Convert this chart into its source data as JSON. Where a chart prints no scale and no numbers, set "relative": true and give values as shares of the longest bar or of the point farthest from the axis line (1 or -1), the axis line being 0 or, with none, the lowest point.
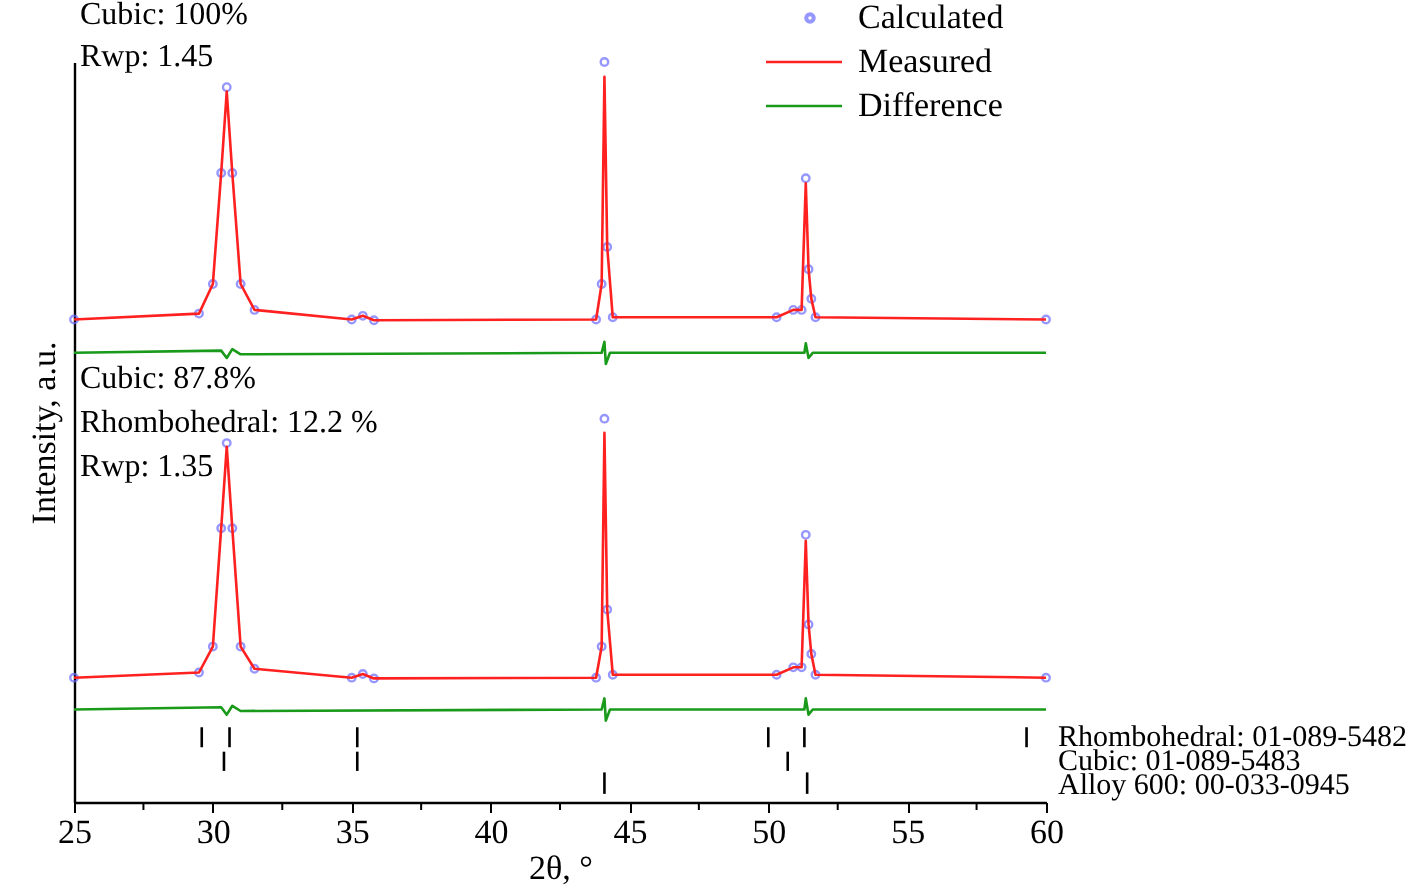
{
  "chart_data": {
    "type": "line",
    "relative": true,
    "xlabel": "2θ, °",
    "ylabel": "Intensity, a.u.",
    "xlim": [
      25,
      60
    ],
    "xticks": [
      25,
      {
        "value": 27.5,
        "label": null
      },
      30,
      {
        "value": 32.5,
        "label": null
      },
      35,
      {
        "value": 37.5,
        "label": null
      },
      40,
      {
        "value": 42.5,
        "label": null
      },
      45,
      {
        "value": 47.5,
        "label": null
      },
      50,
      {
        "value": 52.5,
        "label": null
      },
      55,
      {
        "value": 57.5,
        "label": null
      },
      60
    ],
    "tick_labels": "x",
    "grid": false,
    "legend": "top right",
    "marker": "none",
    "line_style": "solid",
    "annotations": [
      "Cubic: 100%",
      "Rwp: 1.45",
      "Cubic: 87.8%",
      "Rhombohedral: 12.2 %",
      "Rwp: 1.35",
      "Rhombohedral: 01-089-5482",
      "Cubic: 01-089-5483",
      "Alloy 600: 00-033-0945"
    ],
    "x": [
      25,
      29.5,
      30.0,
      30.3,
      30.5,
      30.7,
      31.0,
      31.5,
      35.0,
      35.4,
      35.8,
      43.8,
      44.0,
      44.1,
      44.2,
      44.4,
      50.3,
      50.9,
      51.2,
      51.35,
      51.45,
      51.55,
      51.7,
      60
    ],
    "series": [
      {
        "name": "Calculated",
        "type": "scatter",
        "marker": "circle",
        "color": "#6a6aff",
        "values": [
          0.652,
          0.66,
          0.7,
          0.85,
          0.966,
          0.85,
          0.7,
          0.665,
          0.652,
          0.657,
          0.651,
          0.652,
          0.7,
          1.0,
          0.75,
          0.655,
          0.655,
          0.665,
          0.665,
          0.843,
          0.72,
          0.68,
          0.655,
          0.652
        ]
      },
      {
        "name": "Measured",
        "color": "#ff2020",
        "values": [
          0.652,
          0.66,
          0.7,
          0.85,
          0.96,
          0.85,
          0.7,
          0.665,
          0.652,
          0.657,
          0.651,
          0.652,
          0.7,
          0.98,
          0.75,
          0.655,
          0.655,
          0.665,
          0.665,
          0.836,
          0.72,
          0.68,
          0.655,
          0.652
        ]
      },
      {
        "name": "Difference",
        "color": "#1a9a1a",
        "x": [
          25,
          30.3,
          30.5,
          30.7,
          31.0,
          44.0,
          44.1,
          44.15,
          44.3,
          51.3,
          51.35,
          51.45,
          51.6,
          60
        ],
        "values": [
          0.607,
          0.61,
          0.6,
          0.612,
          0.605,
          0.607,
          0.622,
          0.592,
          0.607,
          0.607,
          0.62,
          0.6,
          0.607,
          0.607
        ]
      },
      {
        "type": "scatter",
        "marker": "circle",
        "color": "#6a6aff",
        "values": [
          0.168,
          0.175,
          0.21,
          0.37,
          0.485,
          0.37,
          0.21,
          0.18,
          0.168,
          0.173,
          0.167,
          0.168,
          0.21,
          0.518,
          0.26,
          0.172,
          0.172,
          0.182,
          0.182,
          0.361,
          0.24,
          0.2,
          0.172,
          0.168
        ]
      },
      {
        "color": "#ff2020",
        "values": [
          0.168,
          0.175,
          0.21,
          0.37,
          0.48,
          0.37,
          0.21,
          0.18,
          0.168,
          0.173,
          0.167,
          0.168,
          0.21,
          0.499,
          0.26,
          0.172,
          0.172,
          0.182,
          0.182,
          0.353,
          0.24,
          0.2,
          0.172,
          0.168
        ]
      },
      {
        "color": "#1a9a1a",
        "x": [
          25,
          30.3,
          30.5,
          30.7,
          31.0,
          44.0,
          44.1,
          44.15,
          44.3,
          51.3,
          51.35,
          51.45,
          51.6,
          60
        ],
        "values": [
          0.125,
          0.128,
          0.118,
          0.13,
          0.123,
          0.125,
          0.14,
          0.11,
          0.125,
          0.125,
          0.14,
          0.118,
          0.125,
          0.125
        ]
      },
      {
        "color": "#000000",
        "x": [
          29.6,
          29.6
        ],
        "values": [
          0.074,
          0.101
        ]
      },
      {
        "color": "#000000",
        "x": [
          30.6,
          30.6
        ],
        "values": [
          0.074,
          0.101
        ]
      },
      {
        "color": "#000000",
        "x": [
          35.2,
          35.2
        ],
        "values": [
          0.074,
          0.101
        ]
      },
      {
        "color": "#000000",
        "x": [
          50.0,
          50.0
        ],
        "values": [
          0.074,
          0.101
        ]
      },
      {
        "color": "#000000",
        "x": [
          51.3,
          51.3
        ],
        "values": [
          0.074,
          0.101
        ]
      },
      {
        "color": "#000000",
        "x": [
          59.3,
          59.3
        ],
        "values": [
          0.074,
          0.101
        ]
      },
      {
        "color": "#000000",
        "x": [
          30.4,
          30.4
        ],
        "values": [
          0.042,
          0.068
        ]
      },
      {
        "color": "#000000",
        "x": [
          35.2,
          35.2
        ],
        "values": [
          0.042,
          0.068
        ]
      },
      {
        "color": "#000000",
        "x": [
          50.7,
          50.7
        ],
        "values": [
          0.042,
          0.068
        ]
      },
      {
        "color": "#000000",
        "x": [
          44.1,
          44.1
        ],
        "values": [
          0.011,
          0.04
        ]
      },
      {
        "color": "#000000",
        "x": [
          51.4,
          51.4
        ],
        "values": [
          0.011,
          0.04
        ]
      }
    ]
  }
}
